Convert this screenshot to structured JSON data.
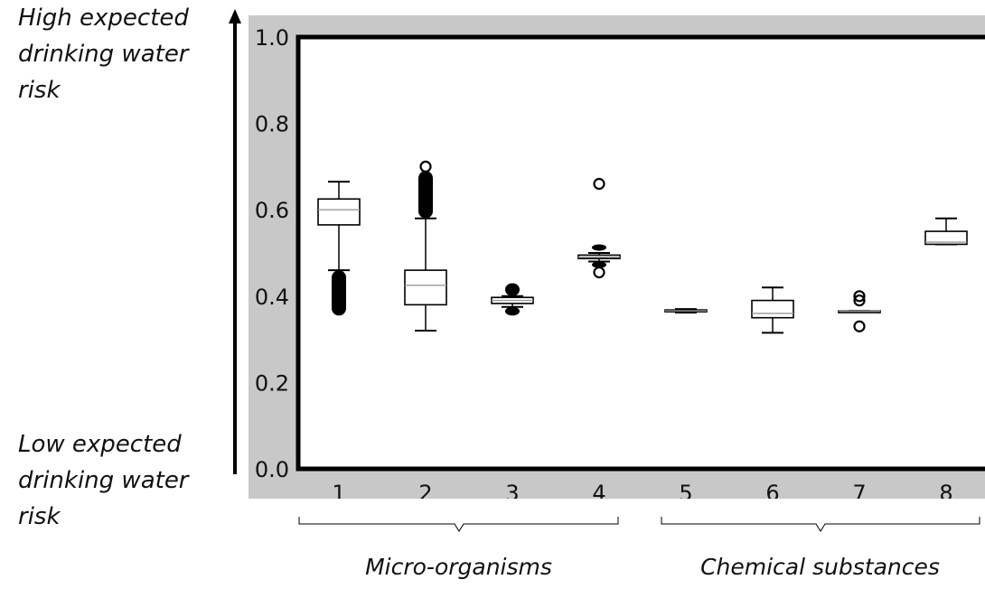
{
  "annotations": {
    "top": "High expected drinking water risk",
    "bottom": "Low expected drinking water risk"
  },
  "groups": [
    {
      "label": "Micro-organisms",
      "categories": [
        "1",
        "2",
        "3",
        "4"
      ]
    },
    {
      "label": "Chemical substances",
      "categories": [
        "5",
        "6",
        "7",
        "8"
      ]
    }
  ],
  "colors": {
    "panel_background": "#c8c8c8",
    "plot_background": "#ffffff",
    "box_edge": "#000000",
    "median": "#aaaaaa"
  },
  "chart_data": {
    "type": "box",
    "title": "",
    "xlabel": "",
    "ylabel": "",
    "categories": [
      "1",
      "2",
      "3",
      "4",
      "5",
      "6",
      "7",
      "8"
    ],
    "ylim": [
      0.0,
      1.0
    ],
    "yticks": [
      "0.0",
      "0.2",
      "0.4",
      "0.6",
      "0.8",
      "1.0"
    ],
    "grid": false,
    "boxes": [
      {
        "category": "1",
        "whisker_low": 0.46,
        "q1": 0.565,
        "median": 0.6,
        "q3": 0.625,
        "whisker_high": 0.665,
        "outliers_dense": [
          [
            0.355,
            0.46
          ]
        ],
        "outliers": []
      },
      {
        "category": "2",
        "whisker_low": 0.32,
        "q1": 0.38,
        "median": 0.425,
        "q3": 0.46,
        "whisker_high": 0.58,
        "outliers_dense": [
          [
            0.58,
            0.69
          ]
        ],
        "outliers": [
          0.7
        ]
      },
      {
        "category": "3",
        "whisker_low": 0.375,
        "q1": 0.383,
        "median": 0.39,
        "q3": 0.397,
        "whisker_high": 0.4,
        "outliers_dense": [
          [
            0.355,
            0.375
          ],
          [
            0.4,
            0.43
          ]
        ],
        "outliers": []
      },
      {
        "category": "4",
        "whisker_low": 0.48,
        "q1": 0.487,
        "median": 0.49,
        "q3": 0.495,
        "whisker_high": 0.5,
        "outliers_dense": [
          [
            0.465,
            0.48
          ],
          [
            0.505,
            0.52
          ]
        ],
        "outliers": [
          0.455,
          0.66
        ]
      },
      {
        "category": "5",
        "whisker_low": 0.362,
        "q1": 0.364,
        "median": 0.366,
        "q3": 0.368,
        "whisker_high": 0.37,
        "outliers_dense": [],
        "outliers": []
      },
      {
        "category": "6",
        "whisker_low": 0.315,
        "q1": 0.35,
        "median": 0.36,
        "q3": 0.39,
        "whisker_high": 0.42,
        "outliers_dense": [],
        "outliers": []
      },
      {
        "category": "7",
        "whisker_low": 0.366,
        "q1": 0.366,
        "median": 0.366,
        "q3": 0.366,
        "whisker_high": 0.366,
        "outliers_dense": [],
        "outliers": [
          0.33,
          0.39,
          0.4
        ]
      },
      {
        "category": "8",
        "whisker_low": 0.52,
        "q1": 0.52,
        "median": 0.525,
        "q3": 0.55,
        "whisker_high": 0.58,
        "outliers_dense": [],
        "outliers": []
      }
    ]
  }
}
